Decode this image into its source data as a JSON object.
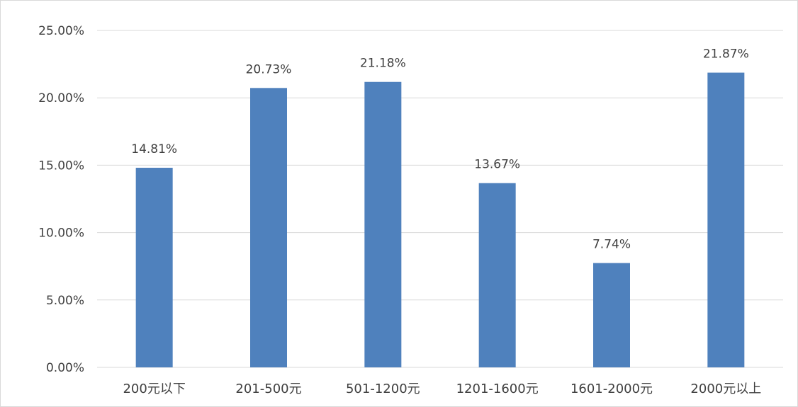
{
  "chart_data": {
    "type": "bar",
    "categories": [
      "200元以下",
      "201-500元",
      "501-1200元",
      "1201-1600元",
      "1601-2000元",
      "2000元以上"
    ],
    "values": [
      14.81,
      20.73,
      21.18,
      13.67,
      7.74,
      21.87
    ],
    "data_labels": [
      "14.81%",
      "20.73%",
      "21.18%",
      "13.67%",
      "7.74%",
      "21.87%"
    ],
    "y_ticks": [
      0,
      5,
      10,
      15,
      20,
      25
    ],
    "y_tick_labels": [
      "0.00%",
      "5.00%",
      "10.00%",
      "15.00%",
      "20.00%",
      "25.00%"
    ],
    "ylim": [
      0,
      25
    ],
    "grid": true,
    "legend": "none",
    "colors": {
      "bar": "#4f81bd",
      "grid": "#d9d9d9",
      "text": "#404040"
    }
  }
}
